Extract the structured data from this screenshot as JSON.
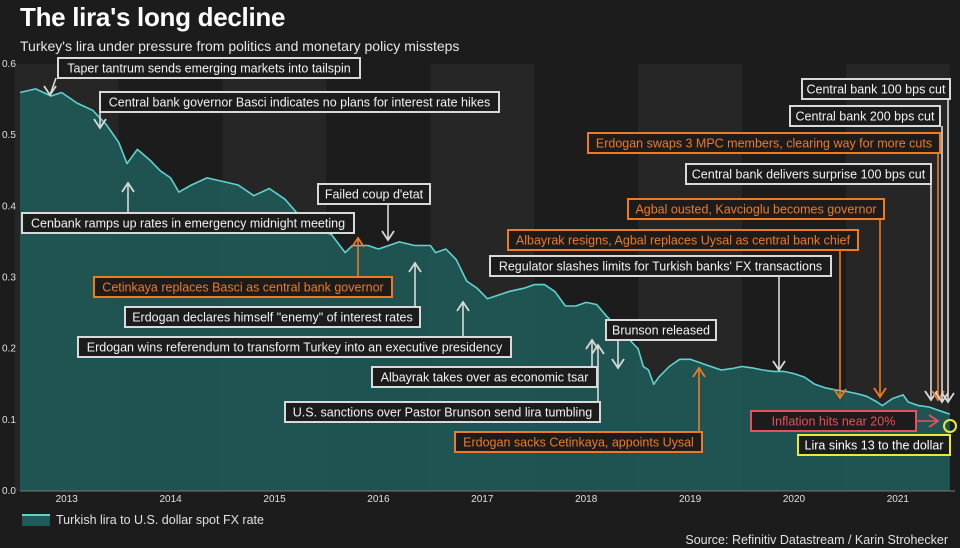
{
  "header": {
    "title": "The lira's long decline",
    "subtitle": "Turkey's lira under pressure from politics and monetary policy missteps"
  },
  "legend": {
    "label": "Turkish lira to U.S. dollar spot FX rate"
  },
  "source": "Source: Refinitiv Datastream / Karin Strohecker",
  "colors": {
    "background": "#1c1c1c",
    "band": "#262626",
    "area": "#1f5a58",
    "line": "#5fd3cf",
    "white_box": "#d9d9d9",
    "orange_box": "#f07a1f",
    "red_box": "#e9505a",
    "yellow_box": "#e9e93a"
  },
  "chart_data": {
    "type": "area",
    "title": "The lira's long decline",
    "xlabel": "",
    "ylabel": "",
    "ylim": [
      0,
      0.6
    ],
    "xlim": [
      2012.55,
      2021.55
    ],
    "yticks": [
      0.0,
      0.1,
      0.2,
      0.3,
      0.4,
      0.5,
      0.6
    ],
    "ytick_labels": [
      "0.0",
      "0.1",
      "0.2",
      "0.3",
      "0.4",
      "0.5",
      "0.6"
    ],
    "xticks": [
      2013,
      2014,
      2015,
      2016,
      2017,
      2018,
      2019,
      2020,
      2021
    ],
    "xtick_labels": [
      "2013",
      "2014",
      "2015",
      "2016",
      "2017",
      "2018",
      "2019",
      "2020",
      "2021"
    ],
    "legend_position": "bottom-left",
    "series": [
      {
        "name": "Turkish lira to U.S. dollar spot FX rate",
        "x": [
          2012.55,
          2012.7,
          2012.85,
          2012.95,
          2013.1,
          2013.25,
          2013.38,
          2013.5,
          2013.58,
          2013.68,
          2013.8,
          2013.9,
          2014.0,
          2014.08,
          2014.2,
          2014.35,
          2014.5,
          2014.65,
          2014.8,
          2014.95,
          2015.1,
          2015.25,
          2015.4,
          2015.55,
          2015.68,
          2015.75,
          2015.9,
          2016.0,
          2016.1,
          2016.2,
          2016.35,
          2016.5,
          2016.55,
          2016.65,
          2016.75,
          2016.85,
          2016.95,
          2017.05,
          2017.15,
          2017.25,
          2017.4,
          2017.5,
          2017.6,
          2017.7,
          2017.8,
          2017.9,
          2018.0,
          2018.1,
          2018.2,
          2018.3,
          2018.4,
          2018.5,
          2018.55,
          2018.6,
          2018.65,
          2018.7,
          2018.8,
          2018.9,
          2019.0,
          2019.1,
          2019.2,
          2019.3,
          2019.4,
          2019.5,
          2019.6,
          2019.7,
          2019.8,
          2019.9,
          2020.0,
          2020.1,
          2020.2,
          2020.3,
          2020.4,
          2020.5,
          2020.6,
          2020.7,
          2020.8,
          2020.85,
          2020.95,
          2021.05,
          2021.1,
          2021.2,
          2021.3,
          2021.4,
          2021.5
        ],
        "values": [
          0.56,
          0.565,
          0.555,
          0.56,
          0.545,
          0.535,
          0.515,
          0.49,
          0.46,
          0.48,
          0.465,
          0.45,
          0.44,
          0.42,
          0.43,
          0.44,
          0.435,
          0.43,
          0.415,
          0.425,
          0.41,
          0.385,
          0.37,
          0.36,
          0.335,
          0.345,
          0.345,
          0.34,
          0.345,
          0.35,
          0.345,
          0.345,
          0.335,
          0.34,
          0.325,
          0.295,
          0.285,
          0.27,
          0.275,
          0.28,
          0.285,
          0.29,
          0.29,
          0.28,
          0.26,
          0.26,
          0.265,
          0.262,
          0.245,
          0.23,
          0.215,
          0.2,
          0.175,
          0.17,
          0.15,
          0.16,
          0.175,
          0.185,
          0.185,
          0.18,
          0.175,
          0.17,
          0.172,
          0.175,
          0.173,
          0.17,
          0.168,
          0.168,
          0.165,
          0.16,
          0.15,
          0.145,
          0.142,
          0.14,
          0.137,
          0.133,
          0.125,
          0.12,
          0.13,
          0.135,
          0.125,
          0.12,
          0.118,
          0.113,
          0.108
        ]
      }
    ],
    "annotations": [
      {
        "text": "Taper tantrum sends emerging markets into tailspin",
        "style": "white"
      },
      {
        "text": "Central bank governor Basci indicates no plans for interest rate hikes",
        "style": "white"
      },
      {
        "text": "Cenbank ramps up rates in emergency midnight meeting",
        "style": "white"
      },
      {
        "text": "Failed coup d'etat",
        "style": "white"
      },
      {
        "text": "Cetinkaya replaces Basci as central bank governor",
        "style": "orange"
      },
      {
        "text": "Erdogan declares himself \"enemy\" of interest rates",
        "style": "white"
      },
      {
        "text": "Erdogan wins referendum to transform Turkey into an executive presidency",
        "style": "white"
      },
      {
        "text": "Albayrak takes over as economic tsar",
        "style": "white"
      },
      {
        "text": "U.S. sanctions over Pastor Brunson send lira tumbling",
        "style": "white"
      },
      {
        "text": "Brunson released",
        "style": "white"
      },
      {
        "text": "Erdogan sacks Cetinkaya, appoints Uysal",
        "style": "orange"
      },
      {
        "text": "Regulator slashes limits for Turkish banks' FX transactions",
        "style": "white"
      },
      {
        "text": "Albayrak resigns, Agbal replaces Uysal as central bank chief",
        "style": "orange"
      },
      {
        "text": "Agbal ousted, Kavcioglu becomes governor",
        "style": "orange"
      },
      {
        "text": "Central bank delivers surprise 100 bps cut",
        "style": "white"
      },
      {
        "text": "Erdogan swaps 3 MPC members, clearing way for more cuts",
        "style": "orange"
      },
      {
        "text": "Central bank 200 bps cut",
        "style": "white"
      },
      {
        "text": "Central bank 100 bps cut",
        "style": "white"
      },
      {
        "text": "Inflation hits near 20%",
        "style": "red"
      },
      {
        "text": "Lira sinks 13 to the dollar",
        "style": "yellow"
      }
    ]
  }
}
